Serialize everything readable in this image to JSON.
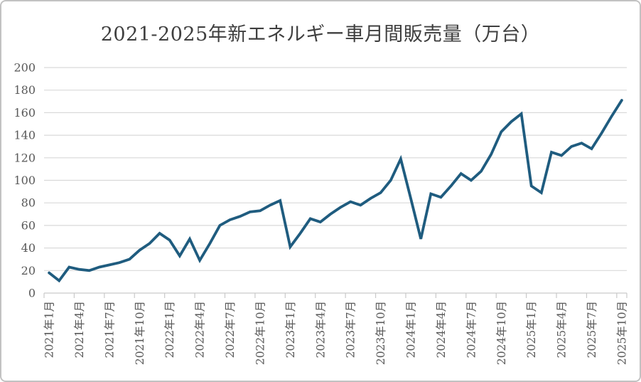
{
  "chart_data": {
    "type": "line",
    "title": "2021-2025年新エネルギー車月間販売量（万台）",
    "xlabel": "",
    "ylabel": "",
    "ylim": [
      0,
      200
    ],
    "y_ticks": [
      0,
      20,
      40,
      60,
      80,
      100,
      120,
      140,
      160,
      180,
      200
    ],
    "grid": true,
    "legend": "none",
    "x_tick_interval_months": 3,
    "x_tick_labels": [
      "2021年1月",
      "2021年4月",
      "2021年7月",
      "2021年10月",
      "2022年1月",
      "2022年4月",
      "2022年7月",
      "2022年10月",
      "2023年1月",
      "2023年4月",
      "2023年7月",
      "2023年10月",
      "2024年1月",
      "2024年4月",
      "2024年7月",
      "2024年10月",
      "2025年1月",
      "2025年4月",
      "2025年7月",
      "2025年10月"
    ],
    "x": [
      "2021年1月",
      "2021年2月",
      "2021年3月",
      "2021年4月",
      "2021年5月",
      "2021年6月",
      "2021年7月",
      "2021年8月",
      "2021年9月",
      "2021年10月",
      "2021年11月",
      "2021年12月",
      "2022年1月",
      "2022年2月",
      "2022年3月",
      "2022年4月",
      "2022年5月",
      "2022年6月",
      "2022年7月",
      "2022年8月",
      "2022年9月",
      "2022年10月",
      "2022年11月",
      "2022年12月",
      "2023年1月",
      "2023年2月",
      "2023年3月",
      "2023年4月",
      "2023年5月",
      "2023年6月",
      "2023年7月",
      "2023年8月",
      "2023年9月",
      "2023年10月",
      "2023年11月",
      "2023年12月",
      "2024年1月",
      "2024年2月",
      "2024年3月",
      "2024年4月",
      "2024年5月",
      "2024年6月",
      "2024年7月",
      "2024年8月",
      "2024年9月",
      "2024年10月",
      "2024年11月",
      "2024年12月",
      "2025年1月",
      "2025年2月",
      "2025年3月",
      "2025年4月",
      "2025年5月",
      "2025年6月",
      "2025年7月",
      "2025年8月",
      "2025年9月",
      "2025年10月"
    ],
    "values": [
      18,
      11,
      23,
      21,
      20,
      23,
      25,
      27,
      30,
      38,
      44,
      53,
      47,
      33,
      48,
      29,
      44,
      60,
      65,
      68,
      72,
      73,
      78,
      82,
      41,
      53,
      66,
      63,
      70,
      76,
      81,
      78,
      84,
      89,
      100,
      119,
      84,
      48,
      88,
      85,
      95,
      106,
      100,
      108,
      123,
      143,
      152,
      159,
      95,
      89,
      125,
      122,
      130,
      133,
      128,
      142,
      157,
      171
    ],
    "colors": {
      "line": "#1f5c7f",
      "grid": "#d9d9d9",
      "axis": "#c9c9c9",
      "tick_text": "#595959",
      "title_text": "#3f3f3f",
      "border": "#c2c2c2",
      "background": "#ffffff"
    }
  }
}
